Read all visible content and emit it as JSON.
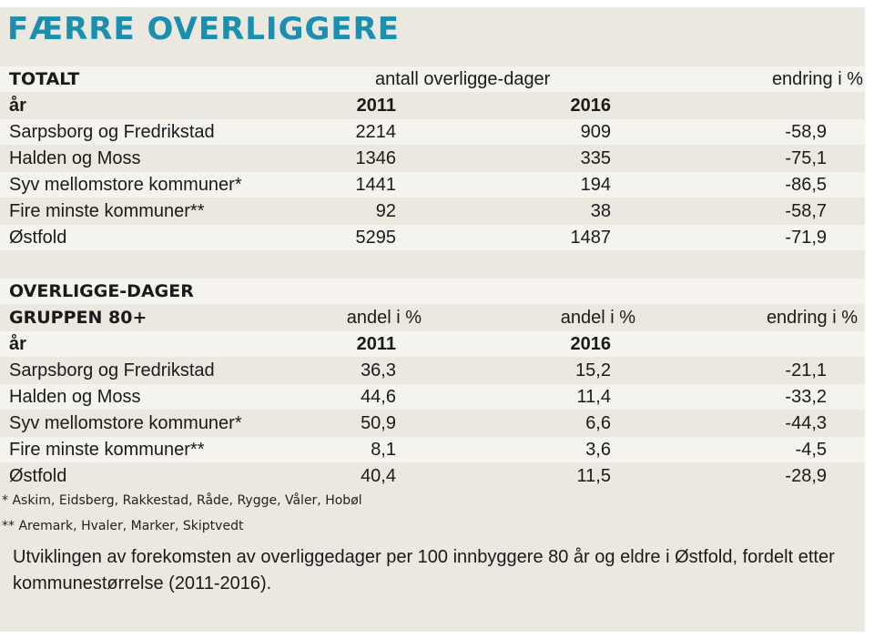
{
  "title": "FÆRRE OVERLIGGERE",
  "table1": {
    "section_label": "TOTALT",
    "unit_label": "antall overligge-dager",
    "change_label": "endring i %",
    "year_label": "år",
    "year1": "2011",
    "year2": "2016",
    "rows": [
      {
        "name": "Sarpsborg og Fredrikstad",
        "v2011": "2214",
        "v2016": "909",
        "change": "-58,9"
      },
      {
        "name": "Halden og Moss",
        "v2011": "1346",
        "v2016": "335",
        "change": "-75,1"
      },
      {
        "name": "Syv mellomstore kommuner*",
        "v2011": "1441",
        "v2016": "194",
        "change": "-86,5"
      },
      {
        "name": "Fire minste kommuner**",
        "v2011": "92",
        "v2016": "38",
        "change": "-58,7"
      },
      {
        "name": "Østfold",
        "v2011": "5295",
        "v2016": "1487",
        "change": "-71,9"
      }
    ]
  },
  "table2": {
    "section_label_1": "OVERLIGGE-DAGER",
    "section_label_2": "GRUPPEN 80+",
    "col1_label": "andel i %",
    "col2_label": "andel i %",
    "change_label": "endring i %",
    "year_label": "år",
    "year1": "2011",
    "year2": "2016",
    "rows": [
      {
        "name": "Sarpsborg og Fredrikstad",
        "v2011": "36,3",
        "v2016": "15,2",
        "change": "-21,1"
      },
      {
        "name": "Halden og Moss",
        "v2011": "44,6",
        "v2016": "11,4",
        "change": "-33,2"
      },
      {
        "name": "Syv mellomstore kommuner*",
        "v2011": "50,9",
        "v2016": "6,6",
        "change": "-44,3"
      },
      {
        "name": "Fire minste kommuner**",
        "v2011": "8,1",
        "v2016": "3,6",
        "change": "-4,5"
      },
      {
        "name": "Østfold",
        "v2011": "40,4",
        "v2016": "11,5",
        "change": "-28,9"
      }
    ]
  },
  "footnotes": {
    "note1": "* Askim, Eidsberg, Rakkestad, Råde, Rygge, Våler, Hobøl",
    "note2": "** Aremark,  Hvaler, Marker, Skiptvedt"
  },
  "caption": "Utviklingen av forekomsten av overliggedager per 100 innbyggere 80 år og eldre i Østfold, fordelt etter kommunestørrelse (2011-2016)."
}
